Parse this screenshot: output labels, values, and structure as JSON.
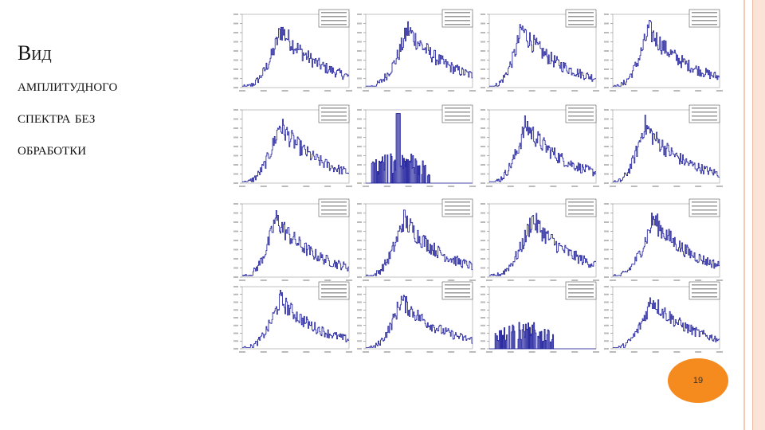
{
  "slide": {
    "title_lines": [
      "Вид",
      "амплитудного",
      "спектра без",
      "обработки"
    ],
    "page_number": "19"
  }
}
